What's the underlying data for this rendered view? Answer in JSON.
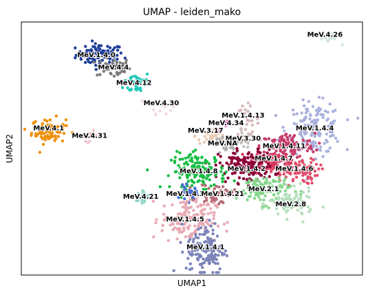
{
  "chart_data": {
    "type": "scatter",
    "title": "UMAP - leiden_mako",
    "xlabel": "UMAP1",
    "ylabel": "UMAP2",
    "xlim": [
      0,
      100
    ],
    "ylim": [
      0,
      100
    ],
    "grid": false,
    "legend": "none (labels on data)",
    "clusters": [
      {
        "label": "MeV.1.4.0",
        "x": 23,
        "y": 87,
        "color": "#1f3f99",
        "n": 90,
        "sx": 3.5,
        "sy": 2.2,
        "lx": 22,
        "ly": 87
      },
      {
        "label": "MeV.4.4",
        "x": 27,
        "y": 82,
        "color": "#7a7a7a",
        "n": 45,
        "sx": 2.5,
        "sy": 2.0,
        "lx": 27,
        "ly": 82
      },
      {
        "label": "MeV.4.12",
        "x": 34,
        "y": 76,
        "color": "#1ec9bb",
        "n": 40,
        "sx": 2.0,
        "sy": 2.3,
        "lx": 33,
        "ly": 76
      },
      {
        "label": "MeV.4.30",
        "x": 41,
        "y": 67,
        "color": "#f2d8e0",
        "n": 15,
        "sx": 1.6,
        "sy": 1.6,
        "lx": 41,
        "ly": 68
      },
      {
        "label": "MeV.4.26",
        "x": 90,
        "y": 93,
        "color": "#cfe6dc",
        "n": 12,
        "sx": 1.5,
        "sy": 1.0,
        "lx": 89,
        "ly": 95
      },
      {
        "label": "MeV.4.1",
        "x": 8,
        "y": 57,
        "color": "#f0900a",
        "n": 80,
        "sx": 2.5,
        "sy": 2.5,
        "lx": 8,
        "ly": 58
      },
      {
        "label": "MeV.4.31",
        "x": 20,
        "y": 55,
        "color": "#f6c3cc",
        "n": 10,
        "sx": 1.2,
        "sy": 1.0,
        "lx": 20,
        "ly": 55
      },
      {
        "label": "MeV.1.4.13",
        "x": 66,
        "y": 61,
        "color": "#d7b7b9",
        "n": 30,
        "sx": 1.8,
        "sy": 3.0,
        "lx": 65,
        "ly": 63
      },
      {
        "label": "MeV.4.34",
        "x": 60,
        "y": 59,
        "color": "#f58ad0",
        "n": 8,
        "sx": 1.0,
        "sy": 1.0,
        "lx": 60,
        "ly": 60
      },
      {
        "label": "MeV.3.17",
        "x": 56,
        "y": 55,
        "color": "#e8ccb6",
        "n": 35,
        "sx": 2.5,
        "sy": 2.5,
        "lx": 54,
        "ly": 57
      },
      {
        "label": "MeV.3.30",
        "x": 65,
        "y": 53,
        "color": "#c7c0bc",
        "n": 20,
        "sx": 1.5,
        "sy": 1.5,
        "lx": 65,
        "ly": 54
      },
      {
        "label": "MeV.NA",
        "x": 60,
        "y": 51,
        "color": "#b0b0b0",
        "n": 30,
        "sx": 2.0,
        "sy": 1.8,
        "lx": 59,
        "ly": 52
      },
      {
        "label": "MeV.1.4.4",
        "x": 86,
        "y": 58,
        "color": "#aab1dd",
        "n": 150,
        "sx": 4.0,
        "sy": 5.0,
        "lx": 86,
        "ly": 58
      },
      {
        "label": "MeV.1.4.11",
        "x": 78,
        "y": 51,
        "color": "#c63c6a",
        "n": 110,
        "sx": 4.0,
        "sy": 2.5,
        "lx": 77,
        "ly": 51
      },
      {
        "label": "MeV.1.4.7",
        "x": 74,
        "y": 45,
        "color": "#d6365d",
        "n": 80,
        "sx": 3.5,
        "sy": 2.5,
        "lx": 74,
        "ly": 46
      },
      {
        "label": "MeV.1.4.6",
        "x": 80,
        "y": 41,
        "color": "#e24e6c",
        "n": 90,
        "sx": 3.5,
        "sy": 2.5,
        "lx": 80,
        "ly": 42
      },
      {
        "label": "MeV.1.4.2",
        "x": 66,
        "y": 43,
        "color": "#8c0037",
        "n": 150,
        "sx": 4.0,
        "sy": 3.2,
        "lx": 66,
        "ly": 42
      },
      {
        "label": "MeV.1.4.8",
        "x": 52,
        "y": 41,
        "color": "#19bd45",
        "n": 150,
        "sx": 4.0,
        "sy": 3.5,
        "lx": 52,
        "ly": 41
      },
      {
        "label": "MeV.2.1",
        "x": 71,
        "y": 34,
        "color": "#87d68e",
        "n": 110,
        "sx": 4.0,
        "sy": 3.0,
        "lx": 71,
        "ly": 34
      },
      {
        "label": "MeV.2.8",
        "x": 79,
        "y": 28,
        "color": "#b7dfbd",
        "n": 80,
        "sx": 3.2,
        "sy": 2.8,
        "lx": 79,
        "ly": 28
      },
      {
        "label": "MeV.4.21",
        "x": 36,
        "y": 31,
        "color": "#91d5cb",
        "n": 25,
        "sx": 1.5,
        "sy": 1.8,
        "lx": 35,
        "ly": 31
      },
      {
        "label": "MeV.1.4.3",
        "x": 49,
        "y": 32,
        "color": "#4a6dd8",
        "n": 25,
        "sx": 1.2,
        "sy": 1.5,
        "lx": 48,
        "ly": 32
      },
      {
        "label": "MeV.1.4.21",
        "x": 57,
        "y": 32,
        "color": "#b86c78",
        "n": 45,
        "sx": 2.5,
        "sy": 2.0,
        "lx": 59,
        "ly": 32
      },
      {
        "label": "MeV.1.4.5",
        "x": 49,
        "y": 22,
        "color": "#e8aab4",
        "n": 150,
        "sx": 4.0,
        "sy": 4.5,
        "lx": 48,
        "ly": 22
      },
      {
        "label": "MeV.1.4.1",
        "x": 54,
        "y": 10,
        "color": "#7c85ba",
        "n": 140,
        "sx": 2.8,
        "sy": 5.5,
        "lx": 54,
        "ly": 11
      }
    ]
  }
}
